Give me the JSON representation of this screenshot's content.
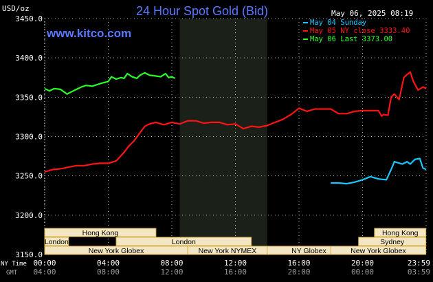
{
  "header": {
    "unit_label": "USD/oz",
    "title": "24 Hour Spot Gold (Bid)",
    "timestamp": "May 06, 2025 08:19",
    "watermark": "www.kitco.com"
  },
  "colors": {
    "background": "#000000",
    "grid": "#ffffff",
    "title": "#5a78ff",
    "watermark": "#5a78ff",
    "night_band": "#1b2118",
    "session_bar": "#f2e6c4",
    "session_border": "#d8b24a",
    "session_text": "#000000"
  },
  "legend": [
    {
      "label": "May 04 Sunday",
      "color": "#19c8ff"
    },
    {
      "label": "May 05 NY close 3333.40",
      "color": "#ff1414"
    },
    {
      "label": "May 06 Last 3373.00",
      "color": "#28ff28"
    }
  ],
  "footer": {
    "nytime_label": "NY Time",
    "gmt_label": "GMT"
  },
  "sessions": [
    {
      "label": "Hong Kong",
      "start": "00:00",
      "end": "07:00",
      "row": 0
    },
    {
      "label": "London",
      "start": "00:00",
      "end": "01:30",
      "row": 1
    },
    {
      "label": "London",
      "start": "04:30",
      "end": "13:00",
      "row": 1
    },
    {
      "label": "New York Globex",
      "start": "00:00",
      "end": "09:00",
      "row": 2
    },
    {
      "label": "New York NYMEX",
      "start": "09:00",
      "end": "14:00",
      "row": 2
    },
    {
      "label": "NY Globex",
      "start": "14:00",
      "end": "19:15",
      "row": 2
    },
    {
      "label": "Hong Kong",
      "start": "20:45",
      "end": "23:59",
      "row": 0
    },
    {
      "label": "Sydney",
      "start": "19:45",
      "end": "23:59",
      "row": 1
    },
    {
      "label": "New York Globex",
      "start": "18:00",
      "end": "23:59",
      "row": 2
    }
  ],
  "chart_data": {
    "type": "line",
    "title": "24 Hour Spot Gold (Bid)",
    "ylabel": "USD/oz",
    "x_ticks_ny": [
      "00:00",
      "04:00",
      "08:00",
      "12:00",
      "16:00",
      "20:00",
      "23:59"
    ],
    "x_ticks_gmt": [
      "04:00",
      "08:00",
      "12:00",
      "16:00",
      "20:00",
      "00:00",
      "03:59"
    ],
    "xlim_hours": [
      0,
      24
    ],
    "ylim": [
      3150,
      3450
    ],
    "y_ticks": [
      "3450.0",
      "3400.0",
      "3350.0",
      "3300.0",
      "3250.0",
      "3200.0",
      "3150.0"
    ],
    "grid": true,
    "legend_position": "top-right",
    "night_band_hours": [
      8.5,
      14.0
    ],
    "series": [
      {
        "name": "May 04 Sunday",
        "color": "#19c8ff",
        "x": [
          18.0,
          18.5,
          19.0,
          19.5,
          20.0,
          20.5,
          21.0,
          21.5,
          21.8,
          22.0,
          22.5,
          22.8,
          23.0,
          23.3,
          23.6,
          23.8,
          24.0
        ],
        "y": [
          3241,
          3241,
          3240,
          3242,
          3245,
          3249,
          3246,
          3245,
          3258,
          3268,
          3265,
          3268,
          3265,
          3271,
          3272,
          3260,
          3258
        ]
      },
      {
        "name": "May 05 NY close 3333.40",
        "color": "#ff1414",
        "x": [
          0.0,
          0.5,
          1.0,
          1.5,
          2.0,
          2.5,
          3.0,
          3.5,
          4.0,
          4.5,
          5.0,
          5.3,
          5.6,
          6.0,
          6.3,
          6.6,
          7.0,
          7.5,
          8.0,
          8.5,
          9.0,
          9.5,
          10.0,
          10.5,
          11.0,
          11.5,
          12.0,
          12.5,
          13.0,
          13.5,
          14.0,
          14.5,
          15.0,
          15.5,
          16.0,
          16.5,
          17.0,
          17.5,
          18.0,
          18.5,
          19.0,
          19.5,
          20.0,
          20.5,
          21.0,
          21.2,
          21.3,
          21.6,
          21.8,
          22.0,
          22.3,
          22.6,
          22.8,
          23.0,
          23.2,
          23.5,
          23.8,
          24.0
        ],
        "y": [
          3255,
          3258,
          3259,
          3261,
          3263,
          3263,
          3265,
          3266,
          3266,
          3269,
          3280,
          3288,
          3294,
          3305,
          3313,
          3316,
          3318,
          3315,
          3318,
          3316,
          3320,
          3320,
          3317,
          3318,
          3318,
          3315,
          3316,
          3310,
          3313,
          3312,
          3314,
          3318,
          3322,
          3328,
          3336,
          3332,
          3335,
          3335,
          3335,
          3329,
          3329,
          3332,
          3333,
          3333,
          3333,
          3326,
          3328,
          3327,
          3350,
          3354,
          3347,
          3375,
          3379,
          3382,
          3370,
          3359,
          3363,
          3361
        ]
      },
      {
        "name": "May 06 Last 3373.00",
        "color": "#28ff28",
        "x": [
          0.0,
          0.3,
          0.6,
          1.0,
          1.4,
          1.8,
          2.0,
          2.3,
          2.6,
          3.0,
          3.3,
          3.6,
          4.0,
          4.2,
          4.5,
          4.8,
          5.0,
          5.2,
          5.5,
          5.8,
          6.0,
          6.3,
          6.6,
          7.0,
          7.3,
          7.6,
          7.8,
          8.0,
          8.2
        ],
        "y": [
          3361,
          3358,
          3361,
          3360,
          3354,
          3358,
          3360,
          3363,
          3365,
          3364,
          3366,
          3368,
          3370,
          3376,
          3373,
          3375,
          3374,
          3380,
          3376,
          3374,
          3378,
          3381,
          3378,
          3377,
          3376,
          3380,
          3375,
          3376,
          3374
        ]
      }
    ]
  }
}
